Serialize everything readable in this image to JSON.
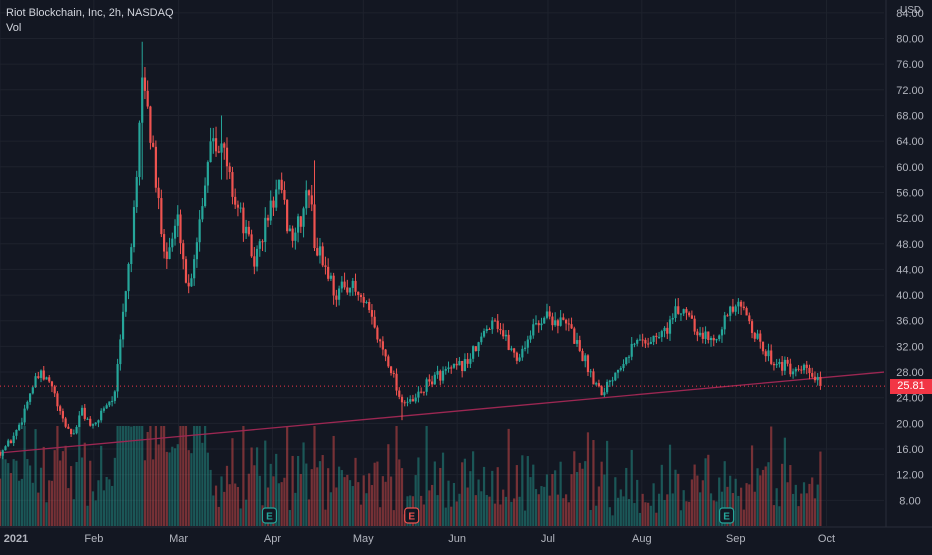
{
  "legend": {
    "symbol": "Riot Blockchain, Inc, 2h, NASDAQ",
    "volume_label": "Vol"
  },
  "currency": "USD",
  "last_price_label": "25.81",
  "colors": {
    "background": "#131722",
    "up": "#26a69a",
    "down": "#ef5350",
    "grid": "#1e222d",
    "trendline": "#9c2752",
    "price_line": "#f23645",
    "axis_text": "#b2b5be"
  },
  "chart_data": {
    "type": "candlestick",
    "y_axis": {
      "min": 4,
      "max": 86,
      "ticks": [
        8,
        12,
        16,
        20,
        24,
        28,
        32,
        36,
        40,
        44,
        48,
        52,
        56,
        60,
        64,
        68,
        72,
        76,
        80,
        84
      ],
      "tick_labels": [
        "8.00",
        "12.00",
        "16.00",
        "20.00",
        "24.00",
        "28.00",
        "32.00",
        "36.00",
        "40.00",
        "44.00",
        "48.00",
        "52.00",
        "56.00",
        "60.00",
        "64.00",
        "68.00",
        "72.00",
        "76.00",
        "80.00",
        "84.00"
      ]
    },
    "x_axis": {
      "start": "2021-01-01",
      "end": "2021-10-20",
      "ticks": [
        {
          "date": "2021-01-01",
          "label": "2021"
        },
        {
          "date": "2021-02-01",
          "label": "Feb"
        },
        {
          "date": "2021-03-01",
          "label": "Mar"
        },
        {
          "date": "2021-04-01",
          "label": "Apr"
        },
        {
          "date": "2021-05-01",
          "label": "May"
        },
        {
          "date": "2021-06-01",
          "label": "Jun"
        },
        {
          "date": "2021-07-01",
          "label": "Jul"
        },
        {
          "date": "2021-08-01",
          "label": "Aug"
        },
        {
          "date": "2021-09-01",
          "label": "Sep"
        },
        {
          "date": "2021-10-01",
          "label": "Oct"
        }
      ]
    },
    "price_path": [
      [
        "2021-01-01",
        15.5
      ],
      [
        "2021-01-05",
        17.5
      ],
      [
        "2021-01-08",
        20.5
      ],
      [
        "2021-01-11",
        25
      ],
      [
        "2021-01-14",
        27.5
      ],
      [
        "2021-01-18",
        26
      ],
      [
        "2021-01-21",
        21
      ],
      [
        "2021-01-25",
        18
      ],
      [
        "2021-01-28",
        22
      ],
      [
        "2021-02-01",
        19
      ],
      [
        "2021-02-04",
        22.5
      ],
      [
        "2021-02-08",
        24.5
      ],
      [
        "2021-02-10",
        34
      ],
      [
        "2021-02-12",
        43
      ],
      [
        "2021-02-15",
        55
      ],
      [
        "2021-02-17",
        75
      ],
      [
        "2021-02-19",
        68
      ],
      [
        "2021-02-22",
        55
      ],
      [
        "2021-02-25",
        46
      ],
      [
        "2021-03-01",
        52
      ],
      [
        "2021-03-04",
        40
      ],
      [
        "2021-03-08",
        52
      ],
      [
        "2021-03-12",
        66
      ],
      [
        "2021-03-16",
        62
      ],
      [
        "2021-03-19",
        56
      ],
      [
        "2021-03-23",
        50
      ],
      [
        "2021-03-26",
        45
      ],
      [
        "2021-03-31",
        53
      ],
      [
        "2021-04-03",
        57
      ],
      [
        "2021-04-07",
        49
      ],
      [
        "2021-04-10",
        51
      ],
      [
        "2021-04-13",
        57
      ],
      [
        "2021-04-15",
        48
      ],
      [
        "2021-04-19",
        44
      ],
      [
        "2021-04-22",
        40
      ],
      [
        "2021-04-26",
        42
      ],
      [
        "2021-04-29",
        40
      ],
      [
        "2021-05-03",
        37
      ],
      [
        "2021-05-06",
        33
      ],
      [
        "2021-05-10",
        29
      ],
      [
        "2021-05-13",
        24
      ],
      [
        "2021-05-17",
        23
      ],
      [
        "2021-05-20",
        25
      ],
      [
        "2021-05-24",
        27
      ],
      [
        "2021-05-28",
        28
      ],
      [
        "2021-06-01",
        28.5
      ],
      [
        "2021-06-05",
        30
      ],
      [
        "2021-06-09",
        33
      ],
      [
        "2021-06-13",
        37
      ],
      [
        "2021-06-17",
        33
      ],
      [
        "2021-06-21",
        30
      ],
      [
        "2021-06-25",
        34
      ],
      [
        "2021-06-30",
        37
      ],
      [
        "2021-07-04",
        36
      ],
      [
        "2021-07-08",
        35
      ],
      [
        "2021-07-12",
        31
      ],
      [
        "2021-07-16",
        27
      ],
      [
        "2021-07-19",
        25
      ],
      [
        "2021-07-23",
        28
      ],
      [
        "2021-07-27",
        31
      ],
      [
        "2021-07-31",
        33
      ],
      [
        "2021-08-04",
        33
      ],
      [
        "2021-08-08",
        34
      ],
      [
        "2021-08-12",
        37
      ],
      [
        "2021-08-16",
        38
      ],
      [
        "2021-08-20",
        34
      ],
      [
        "2021-08-24",
        33
      ],
      [
        "2021-08-28",
        36
      ],
      [
        "2021-09-01",
        38
      ],
      [
        "2021-09-05",
        37
      ],
      [
        "2021-09-09",
        32
      ],
      [
        "2021-09-13",
        30
      ],
      [
        "2021-09-17",
        29
      ],
      [
        "2021-09-21",
        27.5
      ],
      [
        "2021-09-24",
        28.5
      ],
      [
        "2021-09-27",
        27
      ],
      [
        "2021-09-29",
        25.81
      ]
    ],
    "peaks": [
      {
        "date": "2021-02-17",
        "high": 79.5,
        "low": 58
      },
      {
        "date": "2021-03-15",
        "high": 68,
        "low": 58
      },
      {
        "date": "2021-04-15",
        "high": 61,
        "low": 52
      },
      {
        "date": "2021-05-14",
        "high": 23,
        "low": 20.5
      }
    ],
    "trendline": {
      "start": [
        "2021-01-01",
        15.4
      ],
      "end": [
        "2021-10-20",
        28
      ]
    },
    "last_price": 25.81,
    "earnings_markers": [
      {
        "date": "2021-03-31",
        "label": "E",
        "color": "#26a69a"
      },
      {
        "date": "2021-05-17",
        "label": "E",
        "color": "#ef5350"
      },
      {
        "date": "2021-08-29",
        "label": "E",
        "color": "#26a69a"
      }
    ]
  }
}
